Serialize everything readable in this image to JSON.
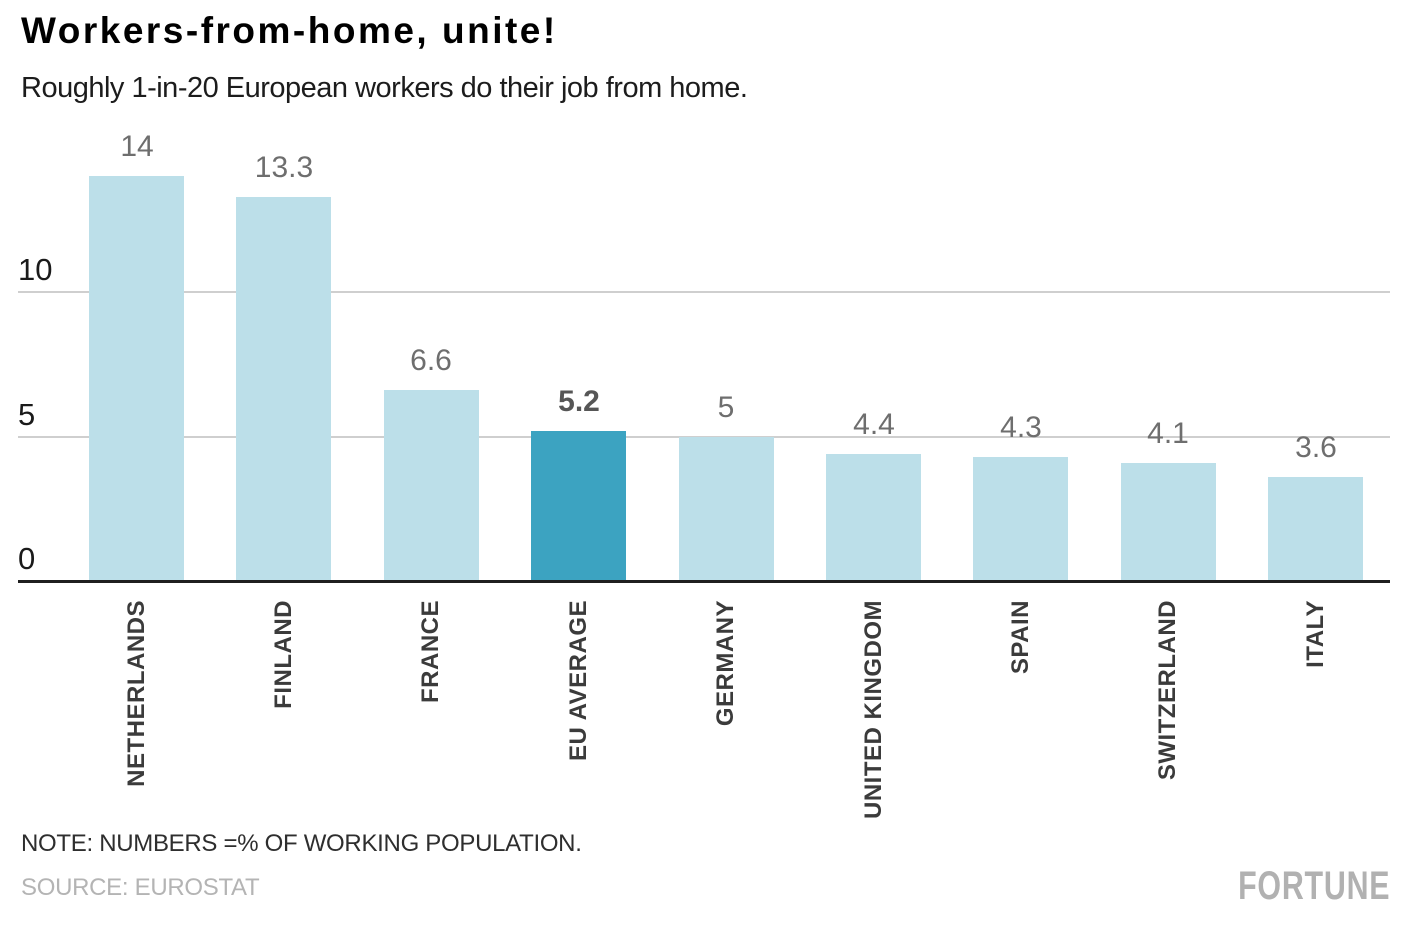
{
  "header": {
    "title": "Workers-from-home, unite!",
    "subtitle": "Roughly 1-in-20 European workers do their job from home."
  },
  "chart_data": {
    "type": "bar",
    "categories": [
      "NETHERLANDS",
      "FINLAND",
      "FRANCE",
      "EU AVERAGE",
      "GERMANY",
      "UNITED KINGDOM",
      "SPAIN",
      "SWITZERLAND",
      "ITALY"
    ],
    "values": [
      14,
      13.3,
      6.6,
      5.2,
      5,
      4.4,
      4.3,
      4.1,
      3.6
    ],
    "value_labels": [
      "14",
      "13.3",
      "6.6",
      "5.2",
      "5",
      "4.4",
      "4.3",
      "4.1",
      "3.6"
    ],
    "highlight_index": 3,
    "highlight_category": "EU AVERAGE",
    "title": "Workers-from-home, unite!",
    "xlabel": "",
    "ylabel": "",
    "yticks": [
      0,
      5,
      10
    ],
    "ylim": [
      0,
      14.5
    ],
    "grid": true,
    "legend": "none",
    "bar_color": "#bcdfe9",
    "highlight_color": "#3ca3c1",
    "gridline_color": "#cfcfcf",
    "axis_color": "#1f1f1f"
  },
  "footer": {
    "note": "NOTE: NUMBERS =% OF WORKING POPULATION.",
    "source": "SOURCE: EUROSTAT",
    "brand": "FORTUNE"
  }
}
